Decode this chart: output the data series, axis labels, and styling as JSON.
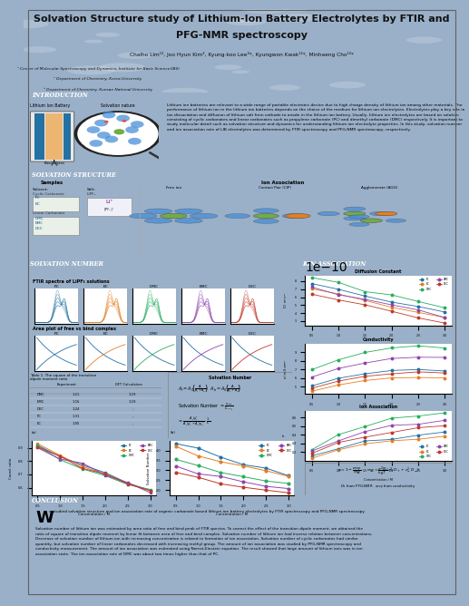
{
  "title_line1": "Solvation Structure study of Lithium-Ion Battery Electrolytes by FTIR and",
  "title_line2": "PFG-NMR spectroscopy",
  "authors": "Chalho Lim¹², Joo Hyun Kim², Kyung-koo Lee³*, Kyungwon Kwak¹²*, Minhaeng Cho¹²*",
  "affil1": "¹ Center of Molecular Spectroscopy and Dynamics, Institute for Basic Science(IBS)",
  "affil2": "² Department of Chemistry, Korea University",
  "affil3": "³ Department of Chemistry, Kunsan National University",
  "bg_header": "#c8d8e8",
  "section_header_color": "#1a5276",
  "intro_text": "Lithium ion batteries are relevant to a wide range of portable electronic device due to high charge density of lithium ion among other materials. The performance of lithium ion in the lithium ion batteries depends on the choice of the medium for lithium ion electrolytes. Electrolytes play a key role in ion dissociation and diffusion of lithium salt from cathode to anode in the lithium ion battery. Usually, lithium ion electrolytes are based on solution consisting of cyclic carbonates and linear carbonates such as propylene carbonate (PC) and dimethyl carbonate (DMC) respectively. It is important to study molecular detail such as solvation structure and dynamics for understanding lithium ion electrolyte properties. In this study, solvation number and ion association rate of LIB electrolytes was determined by FTIR spectroscopy and PFG-NMR spectroscopy, respectively.",
  "conclusion_text": "We studied solvation structure and ion association rate of organic carbonate based lithium-ion battery electrolytes by FTIR spectroscopy and PFG-NMR spectroscopy. Solvation number of lithium ion was estimated by area ratio of free and bind peak of FTIR spectra. To correct the effect of the transition dipole moment, we obtained the ratio of square of transition dipole moment by linear fit between area of free and bind complex. Solvation number of lithium ion had inverse relation between concentrations. Decrease of solvation number of lithium ion with increasing concentration is related to formation of ion association. Solvation number of cyclic carbonates had similar quantity, but solvation number of linear carbonates decreased with increasing methyl group. The amount of ion association was studied by PFG-NMR spectroscopy and conductivity measurement. The amount of ion association was estimated using Nernst-Einstein equation. The result showed that large amount of lithium ions was in ion association state. The ion association rate of DMC was about two times higher than that of PC."
}
